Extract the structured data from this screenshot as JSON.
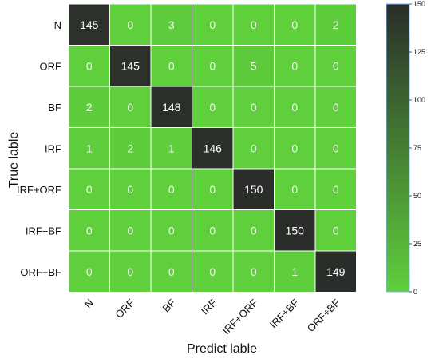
{
  "chart_data": {
    "type": "heatmap",
    "xlabel": "Predict lable",
    "ylabel": "True lable",
    "x_categories": [
      "N",
      "ORF",
      "BF",
      "IRF",
      "IRF+ORF",
      "IRF+BF",
      "ORF+BF"
    ],
    "y_categories": [
      "N",
      "ORF",
      "BF",
      "IRF",
      "IRF+ORF",
      "IRF+BF",
      "ORF+BF"
    ],
    "values": [
      [
        145,
        0,
        3,
        0,
        0,
        0,
        2
      ],
      [
        0,
        145,
        0,
        0,
        5,
        0,
        0
      ],
      [
        2,
        0,
        148,
        0,
        0,
        0,
        0
      ],
      [
        1,
        2,
        1,
        146,
        0,
        0,
        0
      ],
      [
        0,
        0,
        0,
        0,
        150,
        0,
        0
      ],
      [
        0,
        0,
        0,
        0,
        0,
        150,
        0
      ],
      [
        0,
        0,
        0,
        0,
        0,
        1,
        149
      ]
    ],
    "colorbar": {
      "range": [
        0,
        150
      ],
      "ticks": [
        0,
        25,
        50,
        75,
        100,
        125,
        150
      ],
      "low_color": "#5fcf3c",
      "high_color": "#2a2d2a"
    }
  }
}
